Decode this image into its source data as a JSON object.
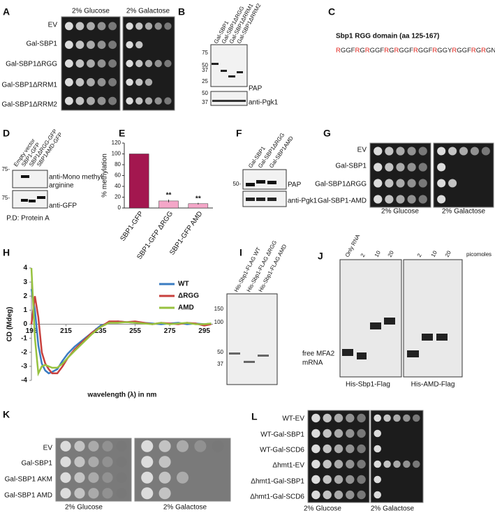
{
  "panels": {
    "A": {
      "label": "A",
      "conditions": [
        "2% Glucose",
        "2% Galactose"
      ],
      "rows": [
        "EV",
        "Gal-SBP1",
        "Gal-SBP1ΔRGG",
        "Gal-SBP1ΔRRM1",
        "Gal-SBP1ΔRRM2"
      ]
    },
    "B": {
      "label": "B",
      "lanes": [
        "Gal-SBP1",
        "Gal-SBP1ΔRGG",
        "Gal-SBP1ΔRRM1",
        "Gal-SBP1ΔRRM2"
      ],
      "markers": [
        "75",
        "50",
        "37",
        "25"
      ],
      "markers2": [
        "50",
        "37"
      ],
      "blots": [
        "PAP",
        "anti-Pgk1"
      ]
    },
    "C": {
      "label": "C",
      "title": "Sbp1 RGG domain (aa 125-167)",
      "sequence": "RGGFRGRGGFRGRGGFRGGFRGGYRGGFRGRGNFRGRGGARGG"
    },
    "D": {
      "label": "D",
      "lanes": [
        "Empty vector",
        "SBP1-GFP",
        "SBP1ΔRGG-GFP",
        "SBP1AMD-GFP"
      ],
      "markers": [
        "75-",
        "75-"
      ],
      "blots": [
        "anti-Mono methyl",
        "arginine",
        "anti-GFP"
      ],
      "footer": "P.D: Protein A"
    },
    "E": {
      "label": "E"
    },
    "F": {
      "label": "F",
      "lanes": [
        "Gal-SBP1",
        "Gal-SBP1ΔRGG",
        "Gal-SBP1AMD"
      ],
      "markers": [
        "50-"
      ],
      "blots": [
        "PAP",
        "anti-Pgk1"
      ]
    },
    "G": {
      "label": "G",
      "rows": [
        "EV",
        "Gal-SBP1",
        "Gal-SBP1ΔRGG",
        "Gal-SBP1-AMD"
      ],
      "conditions": [
        "2% Glucose",
        "2% Galactose"
      ]
    },
    "H": {
      "label": "H"
    },
    "I": {
      "label": "I",
      "lanes": [
        "His-Sbp1-FLAG WT",
        "His-Sbp1-FLAG ΔRGG",
        "His-Sbp1-FLAG AMD"
      ],
      "markers": [
        "150",
        "100",
        "50",
        "37"
      ]
    },
    "J": {
      "label": "J",
      "lanes": [
        "Only RNA",
        "2",
        "10",
        "20",
        "2",
        "10",
        "20"
      ],
      "unit": "picomoles",
      "free_label": [
        "free MFA2",
        "mRNA"
      ],
      "groups": [
        "His-Sbp1-Flag",
        "His-AMD-Flag"
      ]
    },
    "K": {
      "label": "K",
      "rows": [
        "EV",
        "Gal-SBP1",
        "Gal-SBP1 AKM",
        "Gal-SBP1 AMD"
      ],
      "conditions": [
        "2% Glucose",
        "2% Galactose"
      ]
    },
    "L": {
      "label": "L",
      "rows": [
        "WT-EV",
        "WT-Gal-SBP1",
        "WT-Gal-SCD6",
        "Δhmt1-EV",
        "Δhmt1-Gal-SBP1",
        "Δhmt1-Gal-SCD6"
      ],
      "conditions": [
        "2% Glucose",
        "2% Galactose"
      ]
    }
  },
  "chart_data": [
    {
      "type": "bar",
      "ylabel": "% methylation",
      "categories": [
        "SBP1-GFP",
        "SBP1-GFP ΔRGG",
        "SBP1-GFP AMD"
      ],
      "values": [
        100,
        13,
        8
      ],
      "errors": [
        0,
        2.5,
        1.5
      ],
      "colors": [
        "#a3174f",
        "#f4a6c8",
        "#f4a6c8"
      ],
      "annotations": [
        null,
        "**",
        "**"
      ],
      "ylim": [
        0,
        120
      ],
      "yticks": [
        0,
        20,
        40,
        60,
        80,
        100,
        120
      ]
    },
    {
      "type": "line",
      "xlabel": "wavelength (λ) in nm",
      "ylabel": "CD (Mdeg)",
      "x": [
        195,
        197,
        199,
        201,
        203,
        205,
        207,
        210,
        213,
        216,
        220,
        225,
        230,
        235,
        240,
        245,
        250,
        255,
        260,
        265,
        270,
        275,
        280,
        285,
        290,
        295,
        299
      ],
      "series": [
        {
          "name": "WT",
          "color": "#3a7cc2",
          "values": [
            2.5,
            1.0,
            -1.5,
            -2.8,
            -3.3,
            -3.5,
            -3.4,
            -3.2,
            -2.6,
            -2.1,
            -1.6,
            -1.1,
            -0.6,
            -0.1,
            0.1,
            0.2,
            0.15,
            0.1,
            0.1,
            0.05,
            0,
            0.05,
            0.1,
            0,
            0.05,
            0,
            0.05
          ]
        },
        {
          "name": "ΔRGG",
          "color": "#c8403d",
          "values": [
            0,
            2.0,
            0.5,
            -2.0,
            -2.8,
            -3.2,
            -3.5,
            -3.5,
            -3.0,
            -2.4,
            -1.8,
            -1.2,
            -0.6,
            -0.2,
            0.2,
            0.2,
            0.15,
            0.2,
            0.1,
            0,
            0.1,
            0.05,
            0,
            0.1,
            0.05,
            -0.1,
            0
          ]
        },
        {
          "name": "AMD",
          "color": "#97c23f",
          "values": [
            4.0,
            -1.0,
            -3.5,
            -3.0,
            -2.9,
            -3.0,
            -3.1,
            -3.1,
            -2.8,
            -2.4,
            -1.9,
            -1.3,
            -0.7,
            -0.2,
            0.1,
            0.1,
            0.15,
            0.1,
            0.05,
            0,
            0.1,
            0,
            0.05,
            0.1,
            0,
            0,
            0.05
          ]
        }
      ],
      "xlim": [
        195,
        300
      ],
      "xticks": [
        195,
        215,
        235,
        255,
        275,
        295
      ],
      "ylim": [
        -4,
        4
      ],
      "yticks": [
        -4,
        -3,
        -2,
        -1,
        0,
        1,
        2,
        3,
        4
      ],
      "legend": "right"
    }
  ]
}
